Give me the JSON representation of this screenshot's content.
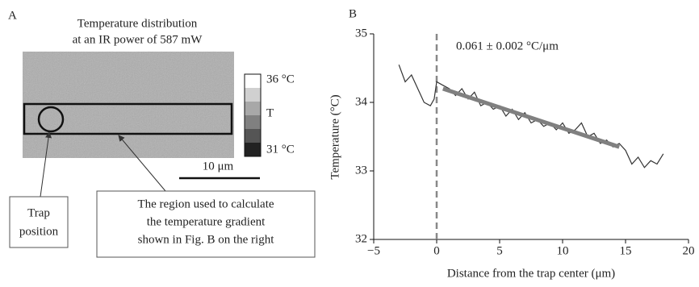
{
  "panel_a": {
    "label": "A",
    "title_lines": [
      "Temperature distribution",
      "at an IR power of 587 mW"
    ],
    "colorbar_labels": [
      "36 °C",
      "T",
      "31 °C"
    ],
    "scale_bar": "10 μm",
    "trap_label": [
      "Trap",
      "position"
    ],
    "region_label": [
      "The region used to calculate",
      "the temperature gradient",
      "shown in Fig. B on the right"
    ]
  },
  "chart_data": {
    "type": "line",
    "panel_label": "B",
    "xlabel": "Distance from the trap center (μm)",
    "ylabel": "Temperature (°C)",
    "annotation": "0.061 ± 0.002 °C/μm",
    "xlim": [
      -5,
      20
    ],
    "ylim": [
      32,
      35
    ],
    "xticks": [
      {
        "value": -5,
        "label": "−5"
      },
      0,
      5,
      10,
      15,
      20
    ],
    "yticks": [
      32,
      33,
      34,
      35
    ],
    "reference_x": 0,
    "series": [
      {
        "color": "#333333",
        "x": [
          -3,
          -2.5,
          -2,
          -1.5,
          -1,
          -0.5,
          -0.2,
          0,
          0.5,
          1,
          1.5,
          2,
          2.5,
          3,
          3.5,
          4,
          4.5,
          5,
          5.5,
          6,
          6.5,
          7,
          7.5,
          8,
          8.5,
          9,
          9.5,
          10,
          10.5,
          11,
          11.5,
          12,
          12.5,
          13,
          13.5,
          14,
          14.5,
          15,
          15.5,
          16,
          16.5,
          17,
          17.5,
          18
        ],
        "values": [
          34.55,
          34.3,
          34.4,
          34.2,
          34.0,
          33.95,
          34.05,
          34.3,
          34.25,
          34.2,
          34.1,
          34.2,
          34.05,
          34.15,
          33.95,
          34.0,
          33.9,
          33.95,
          33.8,
          33.9,
          33.75,
          33.85,
          33.7,
          33.75,
          33.65,
          33.7,
          33.6,
          33.7,
          33.55,
          33.6,
          33.7,
          33.5,
          33.55,
          33.4,
          33.45,
          33.35,
          33.4,
          33.3,
          33.1,
          33.2,
          33.05,
          33.15,
          33.1,
          33.25
        ]
      },
      {
        "color": "#808080",
        "x": [
          0.5,
          14.5
        ],
        "values": [
          34.2,
          33.35
        ]
      }
    ]
  }
}
